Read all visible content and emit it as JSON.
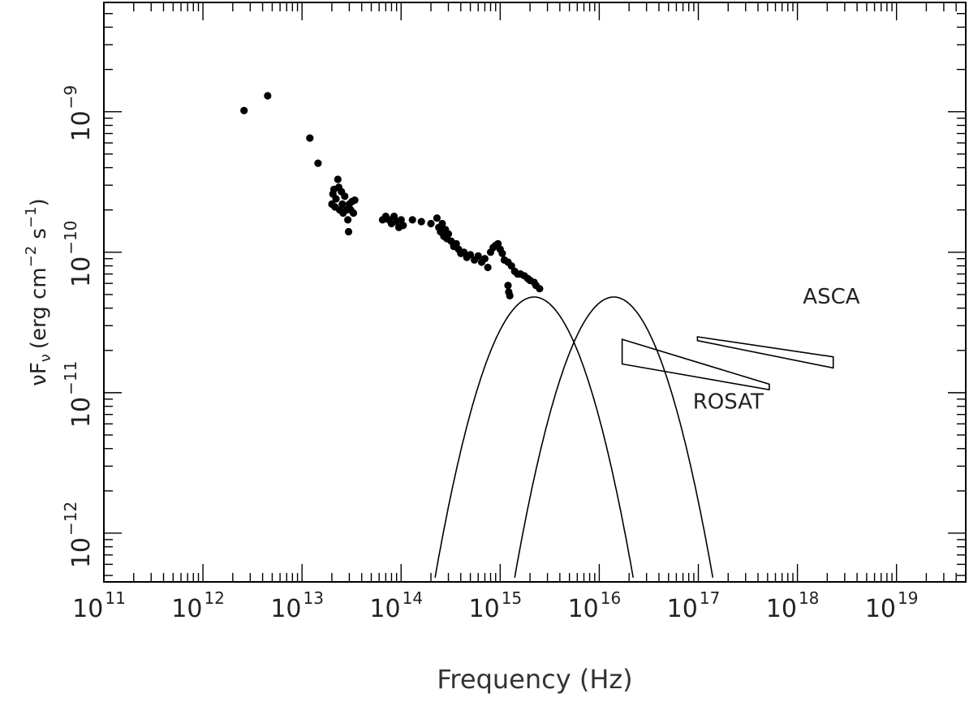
{
  "chart_data": {
    "type": "scatter",
    "title": "",
    "xlabel": "Frequency (Hz)",
    "ylabel": "νFν (erg cm⁻² s⁻¹)",
    "ylabel_parts": {
      "symbol": "νF",
      "subscript": "ν",
      "unit_open": "(erg cm",
      "unit_exp1": "−2",
      "unit_mid": " s",
      "unit_exp2": "−1",
      "unit_close": ")"
    },
    "x_scale": "log",
    "y_scale": "log",
    "xlim": [
      100000000000.0,
      5e+19
    ],
    "ylim": [
      4.5e-13,
      6e-09
    ],
    "x_tick_labels": [
      {
        "value": 100000000000.0,
        "base": "10",
        "exp": "11"
      },
      {
        "value": 1000000000000.0,
        "base": "10",
        "exp": "12"
      },
      {
        "value": 10000000000000.0,
        "base": "10",
        "exp": "13"
      },
      {
        "value": 100000000000000.0,
        "base": "10",
        "exp": "14"
      },
      {
        "value": 1000000000000000.0,
        "base": "10",
        "exp": "15"
      },
      {
        "value": 1e+16,
        "base": "10",
        "exp": "16"
      },
      {
        "value": 1e+17,
        "base": "10",
        "exp": "17"
      },
      {
        "value": 1e+18,
        "base": "10",
        "exp": "18"
      },
      {
        "value": 1e+19,
        "base": "10",
        "exp": "19"
      }
    ],
    "y_tick_labels": [
      {
        "value": 1e-12,
        "base": "10",
        "exp": "−12"
      },
      {
        "value": 1e-11,
        "base": "10",
        "exp": "−11"
      },
      {
        "value": 1e-10,
        "base": "10",
        "exp": "−10"
      },
      {
        "value": 1e-09,
        "base": "10",
        "exp": "−9"
      }
    ],
    "grid": false,
    "series": [
      {
        "type": "scatter",
        "points": [
          [
            2600000000000.0,
            1.02e-09
          ],
          [
            4500000000000.0,
            1.3e-09
          ],
          [
            12000000000000.0,
            6.5e-10
          ],
          [
            14500000000000.0,
            4.3e-10
          ],
          [
            20000000000000.0,
            2.2e-10
          ],
          [
            20500000000000.0,
            2.6e-10
          ],
          [
            21000000000000.0,
            2.8e-10
          ],
          [
            21500000000000.0,
            2.1e-10
          ],
          [
            22000000000000.0,
            2.4e-10
          ],
          [
            23000000000000.0,
            3.3e-10
          ],
          [
            23500000000000.0,
            2.9e-10
          ],
          [
            24000000000000.0,
            2e-10
          ],
          [
            25000000000000.0,
            2.7e-10
          ],
          [
            25500000000000.0,
            2.2e-10
          ],
          [
            26000000000000.0,
            1.9e-10
          ],
          [
            27000000000000.0,
            2.5e-10
          ],
          [
            28000000000000.0,
            2e-10
          ],
          [
            29000000000000.0,
            1.7e-10
          ],
          [
            29500000000000.0,
            1.4e-10
          ],
          [
            30000000000000.0,
            2.2e-10
          ],
          [
            31000000000000.0,
            2e-10
          ],
          [
            32000000000000.0,
            2.3e-10
          ],
          [
            33000000000000.0,
            1.9e-10
          ],
          [
            34000000000000.0,
            2.35e-10
          ],
          [
            65000000000000.0,
            1.7e-10
          ],
          [
            70000000000000.0,
            1.8e-10
          ],
          [
            75000000000000.0,
            1.7e-10
          ],
          [
            80000000000000.0,
            1.6e-10
          ],
          [
            85000000000000.0,
            1.8e-10
          ],
          [
            90000000000000.0,
            1.65e-10
          ],
          [
            95000000000000.0,
            1.5e-10
          ],
          [
            100000000000000.0,
            1.7e-10
          ],
          [
            105000000000000.0,
            1.55e-10
          ],
          [
            130000000000000.0,
            1.7e-10
          ],
          [
            160000000000000.0,
            1.65e-10
          ],
          [
            200000000000000.0,
            1.6e-10
          ],
          [
            230000000000000.0,
            1.75e-10
          ],
          [
            240000000000000.0,
            1.5e-10
          ],
          [
            250000000000000.0,
            1.4e-10
          ],
          [
            260000000000000.0,
            1.6e-10
          ],
          [
            270000000000000.0,
            1.3e-10
          ],
          [
            280000000000000.0,
            1.45e-10
          ],
          [
            290000000000000.0,
            1.25e-10
          ],
          [
            300000000000000.0,
            1.35e-10
          ],
          [
            320000000000000.0,
            1.2e-10
          ],
          [
            340000000000000.0,
            1.1e-10
          ],
          [
            360000000000000.0,
            1.15e-10
          ],
          [
            380000000000000.0,
            1.05e-10
          ],
          [
            400000000000000.0,
            9.8e-11
          ],
          [
            430000000000000.0,
            1e-10
          ],
          [
            460000000000000.0,
            9.2e-11
          ],
          [
            500000000000000.0,
            9.6e-11
          ],
          [
            550000000000000.0,
            8.8e-11
          ],
          [
            600000000000000.0,
            9.4e-11
          ],
          [
            650000000000000.0,
            8.5e-11
          ],
          [
            700000000000000.0,
            9e-11
          ],
          [
            750000000000000.0,
            7.8e-11
          ],
          [
            800000000000000.0,
            1e-10
          ],
          [
            850000000000000.0,
            1.08e-10
          ],
          [
            900000000000000.0,
            1.12e-10
          ],
          [
            950000000000000.0,
            1.15e-10
          ],
          [
            1000000000000000.0,
            1.05e-10
          ],
          [
            1050000000000000.0,
            9.8e-11
          ],
          [
            1100000000000000.0,
            8.8e-11
          ],
          [
            1200000000000000.0,
            8.5e-11
          ],
          [
            1300000000000000.0,
            8e-11
          ],
          [
            1400000000000000.0,
            7.3e-11
          ],
          [
            1200000000000000.0,
            5.8e-11
          ],
          [
            1220000000000000.0,
            5.2e-11
          ],
          [
            1250000000000000.0,
            4.9e-11
          ],
          [
            1500000000000000.0,
            7e-11
          ],
          [
            1600000000000000.0,
            7e-11
          ],
          [
            1750000000000000.0,
            6.8e-11
          ],
          [
            1900000000000000.0,
            6.5e-11
          ],
          [
            2000000000000000.0,
            6.3e-11
          ],
          [
            2200000000000000.0,
            6.1e-11
          ],
          [
            2300000000000000.0,
            5.8e-11
          ],
          [
            2500000000000000.0,
            5.5e-11
          ]
        ]
      },
      {
        "type": "line",
        "name": "",
        "description_free": true,
        "peak_x": 2200000000000000.0,
        "peak_y": 4.8e-11,
        "sigma_dex": 0.5
      },
      {
        "type": "line",
        "name": "",
        "peak_x": 1.4e+16,
        "peak_y": 4.8e-11,
        "sigma_dex": 0.5
      }
    ],
    "bowties": [
      {
        "label": "ROSAT",
        "x_range": [
          1.7e+16,
          5.2e+17
        ],
        "left": [
          1.6e-11,
          2.4e-11
        ],
        "right": [
          1.05e-11,
          1.15e-11
        ]
      },
      {
        "label": "ASCA",
        "x_range": [
          9.8e+16,
          2.3e+18
        ],
        "left": [
          2.35e-11,
          2.5e-11
        ],
        "right": [
          1.5e-11,
          1.8e-11
        ]
      }
    ],
    "annotations": [
      {
        "text": "ASCA",
        "x": 2.2e+18,
        "y": 4.3e-11
      },
      {
        "text": "ROSAT",
        "x": 2e+17,
        "y": 7.7e-12
      }
    ]
  }
}
